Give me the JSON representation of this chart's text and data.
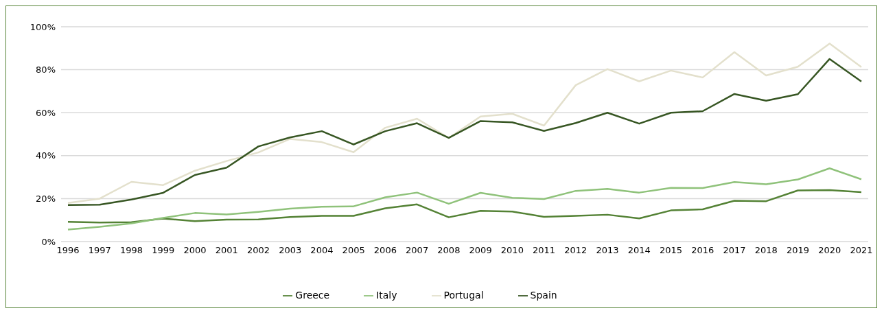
{
  "chart_data": {
    "type": "line",
    "categories": [
      "1996",
      "1997",
      "1998",
      "1999",
      "2000",
      "2001",
      "2002",
      "2003",
      "2004",
      "2005",
      "2006",
      "2007",
      "2008",
      "2009",
      "2010",
      "2011",
      "2012",
      "2013",
      "2014",
      "2015",
      "2016",
      "2017",
      "2018",
      "2019",
      "2020",
      "2021"
    ],
    "series": [
      {
        "name": "Greece",
        "color": "#548235",
        "values": [
          9.2,
          8.9,
          9,
          10.7,
          9.5,
          10.2,
          10.3,
          11.4,
          12,
          12,
          15.5,
          17.3,
          11.3,
          14.3,
          14,
          11.5,
          12,
          12.5,
          10.8,
          14.5,
          15,
          19,
          18.8,
          23.8,
          24,
          23
        ]
      },
      {
        "name": "Italy",
        "color": "#8fc27a",
        "values": [
          5.6,
          6.9,
          8.5,
          11,
          13.3,
          12.6,
          13.8,
          15.3,
          16.2,
          16.4,
          20.6,
          22.8,
          17.6,
          22.7,
          20.4,
          19.8,
          23.6,
          24.5,
          22.8,
          25,
          24.9,
          27.7,
          26.7,
          28.9,
          34.1,
          29
        ]
      },
      {
        "name": "Portugal",
        "color": "#e3e0cc",
        "values": [
          18,
          20,
          27.8,
          26.3,
          33,
          37.5,
          41.5,
          47.8,
          46.3,
          41.6,
          53,
          57.2,
          48.2,
          58.2,
          59.5,
          54,
          72.8,
          80.3,
          74.6,
          79.6,
          76.4,
          88.2,
          77.3,
          81.4,
          92.2,
          81.2
        ]
      },
      {
        "name": "Spain",
        "color": "#375623",
        "values": [
          17,
          17.2,
          19.6,
          22.7,
          31,
          34.4,
          44.3,
          48.5,
          51.4,
          45.2,
          51.4,
          55.1,
          48.3,
          56.1,
          55.5,
          51.5,
          55.2,
          60,
          54.9,
          60,
          60.7,
          68.7,
          65.6,
          68.6,
          85,
          74.5
        ]
      }
    ],
    "ylim": [
      0,
      100
    ],
    "yticks": [
      {
        "value": 0,
        "label": "0%"
      },
      {
        "value": 20,
        "label": "20%"
      },
      {
        "value": 40,
        "label": "40%"
      },
      {
        "value": 60,
        "label": "60%"
      },
      {
        "value": 80,
        "label": "80%"
      },
      {
        "value": 100,
        "label": "100%"
      }
    ],
    "grid": "y",
    "legend": "bottom",
    "marker": "none",
    "line_style": "solid"
  }
}
